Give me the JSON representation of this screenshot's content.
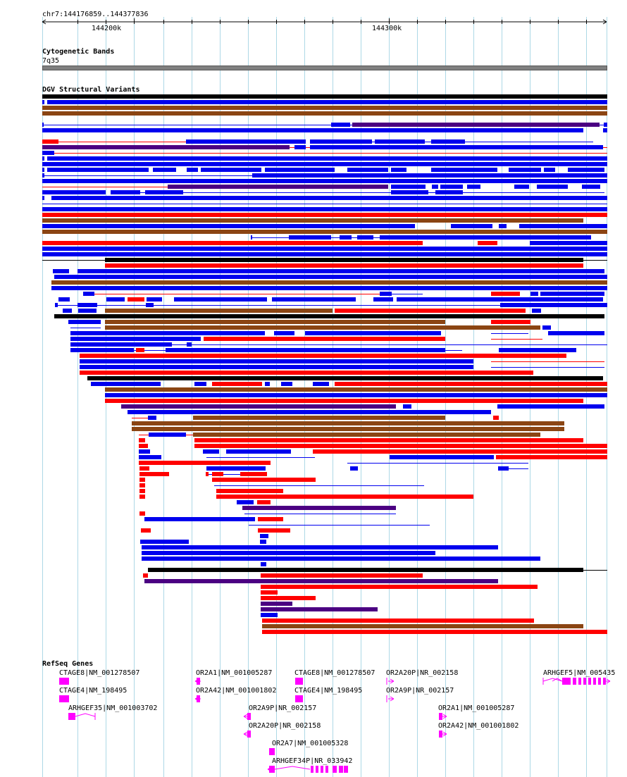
{
  "page": {
    "location": "chr7:144176859..144377836"
  },
  "ruler": {
    "ticks": [
      {
        "label": "144200k",
        "pos": 144200000
      },
      {
        "label": "144300k",
        "pos": 144300000
      }
    ]
  },
  "cytoband": {
    "title": "Cytogenetic Bands",
    "band": "7q35"
  },
  "dgv": {
    "title": "DGV Structural Variants"
  },
  "refseq": {
    "title": "RefSeq Genes",
    "genes": [
      {
        "label": "CTAGE8|NM_001278507"
      },
      {
        "label": "CTAGE4|NM_198495"
      },
      {
        "label": "ARHGEF35|NM_001003702"
      },
      {
        "label": "OR2A1|NM_001005287"
      },
      {
        "label": "OR2A42|NM_001001802"
      },
      {
        "label": "OR2A9P|NR_002157"
      },
      {
        "label": "OR2A20P|NR_002158"
      },
      {
        "label": "OR2A7|NM_001005328"
      },
      {
        "label": "ARHGEF34P|NR_033942"
      },
      {
        "label": "CTAGE8|NM_001278507"
      },
      {
        "label": "CTAGE4|NM_198495"
      },
      {
        "label": "OR2A20P|NR_002158"
      },
      {
        "label": "OR2A9P|NR_002157"
      },
      {
        "label": "OR2A1|NM_001005287"
      },
      {
        "label": "OR2A42|NM_001001802"
      },
      {
        "label": "ARHGEF5|NM_005435"
      }
    ]
  },
  "colors": {
    "gain": "#0000ee",
    "loss": "#ff0000",
    "inversion": "#8b4513",
    "complex": "#4b0082",
    "other": "#000000",
    "gene": "#ff00ff",
    "grid": "#add8e6",
    "cyto": "#808080"
  }
}
